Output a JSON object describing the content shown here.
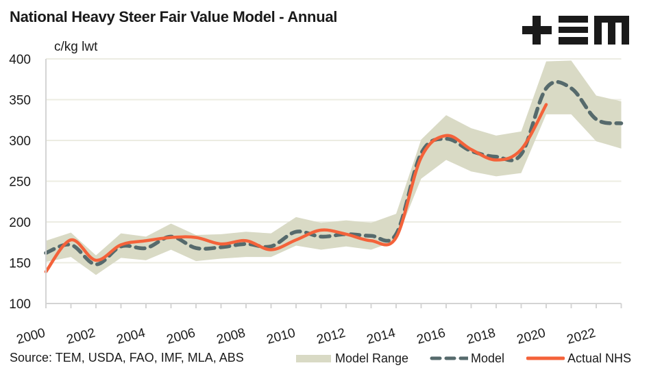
{
  "title": "National Heavy Steer Fair Value Model - Annual",
  "unit_label": "c/kg lwt",
  "source": "Source: TEM, USDA, FAO, IMF, MLA, ABS",
  "logo_text": "+EM",
  "colors": {
    "band": "#d9dac5",
    "model": "#566a6c",
    "actual": "#f4623a",
    "grid": "#ecece2",
    "axis": "#d4d4d4"
  },
  "legend": {
    "band_label": "Model Range",
    "model_label": "Model",
    "actual_label": "Actual NHS"
  },
  "chart_data": {
    "type": "line",
    "title": "National Heavy Steer Fair Value Model - Annual",
    "xlabel": "",
    "ylabel": "c/kg lwt",
    "ylim": [
      100,
      400
    ],
    "yticks": [
      100,
      150,
      200,
      250,
      300,
      350,
      400
    ],
    "grid": true,
    "legend_position": "bottom",
    "x": [
      2000,
      2001,
      2002,
      2003,
      2004,
      2005,
      2006,
      2007,
      2008,
      2009,
      2010,
      2011,
      2012,
      2013,
      2014,
      2015,
      2016,
      2017,
      2018,
      2019,
      2020,
      2021,
      2022,
      2023
    ],
    "xtick_labels": [
      "2000",
      "2002",
      "2004",
      "2006",
      "2008",
      "2010",
      "2012",
      "2014",
      "2016",
      "2018",
      "2020",
      "2022"
    ],
    "series": [
      {
        "name": "Model Range",
        "kind": "band",
        "upper": [
          177,
          187,
          159,
          186,
          182,
          198,
          184,
          185,
          188,
          186,
          206,
          199,
          202,
          199,
          210,
          301,
          331,
          315,
          306,
          311,
          397,
          398,
          355,
          348
        ],
        "lower": [
          151,
          157,
          135,
          156,
          153,
          166,
          152,
          155,
          157,
          157,
          171,
          166,
          170,
          166,
          177,
          253,
          276,
          262,
          256,
          260,
          332,
          332,
          299,
          290
        ]
      },
      {
        "name": "Model",
        "kind": "dashed-line",
        "values": [
          162,
          172,
          148,
          170,
          168,
          182,
          168,
          169,
          173,
          170,
          188,
          182,
          185,
          183,
          185,
          284,
          302,
          287,
          280,
          283,
          364,
          364,
          326,
          321
        ]
      },
      {
        "name": "Actual NHS",
        "kind": "line",
        "values": [
          139,
          178,
          153,
          172,
          177,
          181,
          181,
          173,
          177,
          166,
          178,
          190,
          185,
          177,
          181,
          279,
          306,
          289,
          276,
          289,
          344,
          null,
          null,
          null
        ]
      }
    ]
  }
}
